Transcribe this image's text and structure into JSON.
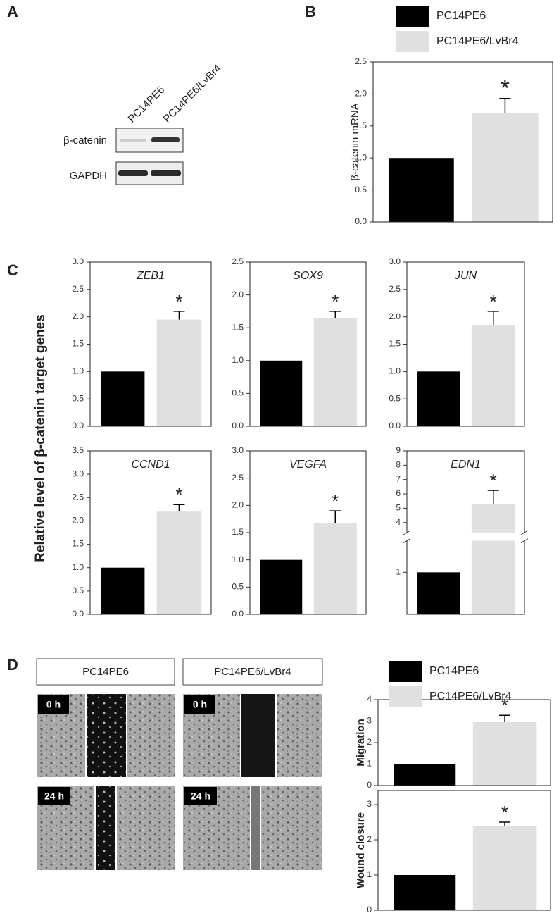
{
  "panel_labels": [
    "A",
    "B",
    "C",
    "D"
  ],
  "blot": {
    "lanes": [
      "PC14PE6",
      "PC14PE6/LvBr4"
    ],
    "rows": [
      "β-catenin",
      "GAPDH"
    ]
  },
  "shared_ylabel": "Relative level of β-catenin target genes",
  "wound": {
    "columns": [
      "PC14PE6",
      "PC14PE6/LvBr4"
    ],
    "times": [
      "0 h",
      "24 h"
    ]
  },
  "chart_data": [
    {
      "type": "bar",
      "ylabel": "β-catenin mRNA",
      "legend": "top",
      "annotation": "*",
      "ylim": [
        0,
        2.5
      ],
      "yticks": [
        {
          "value": 0,
          "label": "0.0"
        },
        0.5,
        {
          "value": 1,
          "label": "1.0"
        },
        1.5,
        {
          "value": 2,
          "label": "2.0"
        },
        2.5
      ],
      "series": [
        {
          "name": "PC14PE6",
          "color": "#000000",
          "values": [
            1.0
          ]
        },
        {
          "name": "PC14PE6/LvBr4",
          "color": "#e0e0e0",
          "values": [
            1.7
          ],
          "errors": [
            0.23
          ]
        }
      ]
    },
    {
      "type": "bar",
      "title": "ZEB1",
      "annotation": "*",
      "ylim": [
        0,
        3
      ],
      "yticks": [
        {
          "value": 0,
          "label": "0.0"
        },
        0.5,
        {
          "value": 1,
          "label": "1.0"
        },
        1.5,
        {
          "value": 2,
          "label": "2.0"
        },
        2.5,
        {
          "value": 3,
          "label": "3.0"
        }
      ],
      "series": [
        {
          "color": "#000000",
          "values": [
            1.0
          ]
        },
        {
          "color": "#e0e0e0",
          "values": [
            1.95
          ],
          "errors": [
            0.15
          ]
        }
      ]
    },
    {
      "type": "bar",
      "title": "SOX9",
      "annotation": "*",
      "ylim": [
        0,
        2.5
      ],
      "yticks": [
        {
          "value": 0,
          "label": "0.0"
        },
        0.5,
        {
          "value": 1,
          "label": "1.0"
        },
        1.5,
        {
          "value": 2,
          "label": "2.0"
        },
        2.5
      ],
      "series": [
        {
          "color": "#000000",
          "values": [
            1.0
          ]
        },
        {
          "color": "#e0e0e0",
          "values": [
            1.65
          ],
          "errors": [
            0.1
          ]
        }
      ]
    },
    {
      "type": "bar",
      "title": "JUN",
      "annotation": "*",
      "ylim": [
        0,
        3
      ],
      "yticks": [
        {
          "value": 0,
          "label": "0.0"
        },
        0.5,
        {
          "value": 1,
          "label": "1.0"
        },
        1.5,
        {
          "value": 2,
          "label": "2.0"
        },
        2.5,
        {
          "value": 3,
          "label": "3.0"
        }
      ],
      "series": [
        {
          "color": "#000000",
          "values": [
            1.0
          ]
        },
        {
          "color": "#e0e0e0",
          "values": [
            1.85
          ],
          "errors": [
            0.25
          ]
        }
      ]
    },
    {
      "type": "bar",
      "title": "CCND1",
      "annotation": "*",
      "ylim": [
        0,
        3.5
      ],
      "yticks": [
        {
          "value": 0,
          "label": "0.0"
        },
        0.5,
        {
          "value": 1,
          "label": "1.0"
        },
        1.5,
        {
          "value": 2,
          "label": "2.0"
        },
        2.5,
        {
          "value": 3,
          "label": "3.0"
        },
        3.5
      ],
      "series": [
        {
          "color": "#000000",
          "values": [
            1.0
          ]
        },
        {
          "color": "#e0e0e0",
          "values": [
            2.2
          ],
          "errors": [
            0.15
          ]
        }
      ]
    },
    {
      "type": "bar",
      "title": "VEGFA",
      "annotation": "*",
      "ylim": [
        0,
        3
      ],
      "yticks": [
        {
          "value": 0,
          "label": "0.0"
        },
        0.5,
        {
          "value": 1,
          "label": "1.0"
        },
        1.5,
        {
          "value": 2,
          "label": "2.0"
        },
        2.5,
        {
          "value": 3,
          "label": "3.0"
        }
      ],
      "series": [
        {
          "color": "#000000",
          "values": [
            1.0
          ]
        },
        {
          "color": "#e0e0e0",
          "values": [
            1.67
          ],
          "errors": [
            0.23
          ]
        }
      ]
    },
    {
      "type": "bar",
      "title": "EDN1",
      "annotation": "*",
      "ylim": [
        0,
        9
      ],
      "ybreak": [
        1.75,
        3.3
      ],
      "yticks": [
        1,
        4,
        5,
        6,
        7,
        8,
        9
      ],
      "series": [
        {
          "color": "#000000",
          "values": [
            1.0
          ]
        },
        {
          "color": "#e0e0e0",
          "values": [
            5.3
          ],
          "errors": [
            0.95
          ]
        }
      ]
    },
    {
      "type": "bar",
      "ylabel": "Migration",
      "legend": "top",
      "annotation": "*",
      "ylim": [
        0,
        4
      ],
      "yticks": [
        0,
        1,
        2,
        3,
        4
      ],
      "series": [
        {
          "name": "PC14PE6",
          "color": "#000000",
          "values": [
            1.0
          ]
        },
        {
          "name": "PC14PE6/LvBr4",
          "color": "#e0e0e0",
          "values": [
            2.95
          ],
          "errors": [
            0.32
          ]
        }
      ]
    },
    {
      "type": "bar",
      "ylabel": "Wound closure",
      "annotation": "*",
      "ylim": [
        0,
        3.4
      ],
      "yticks": [
        0,
        1,
        2,
        3
      ],
      "series": [
        {
          "color": "#000000",
          "values": [
            1.0
          ]
        },
        {
          "color": "#e0e0e0",
          "values": [
            2.4
          ],
          "errors": [
            0.1
          ]
        }
      ]
    }
  ]
}
